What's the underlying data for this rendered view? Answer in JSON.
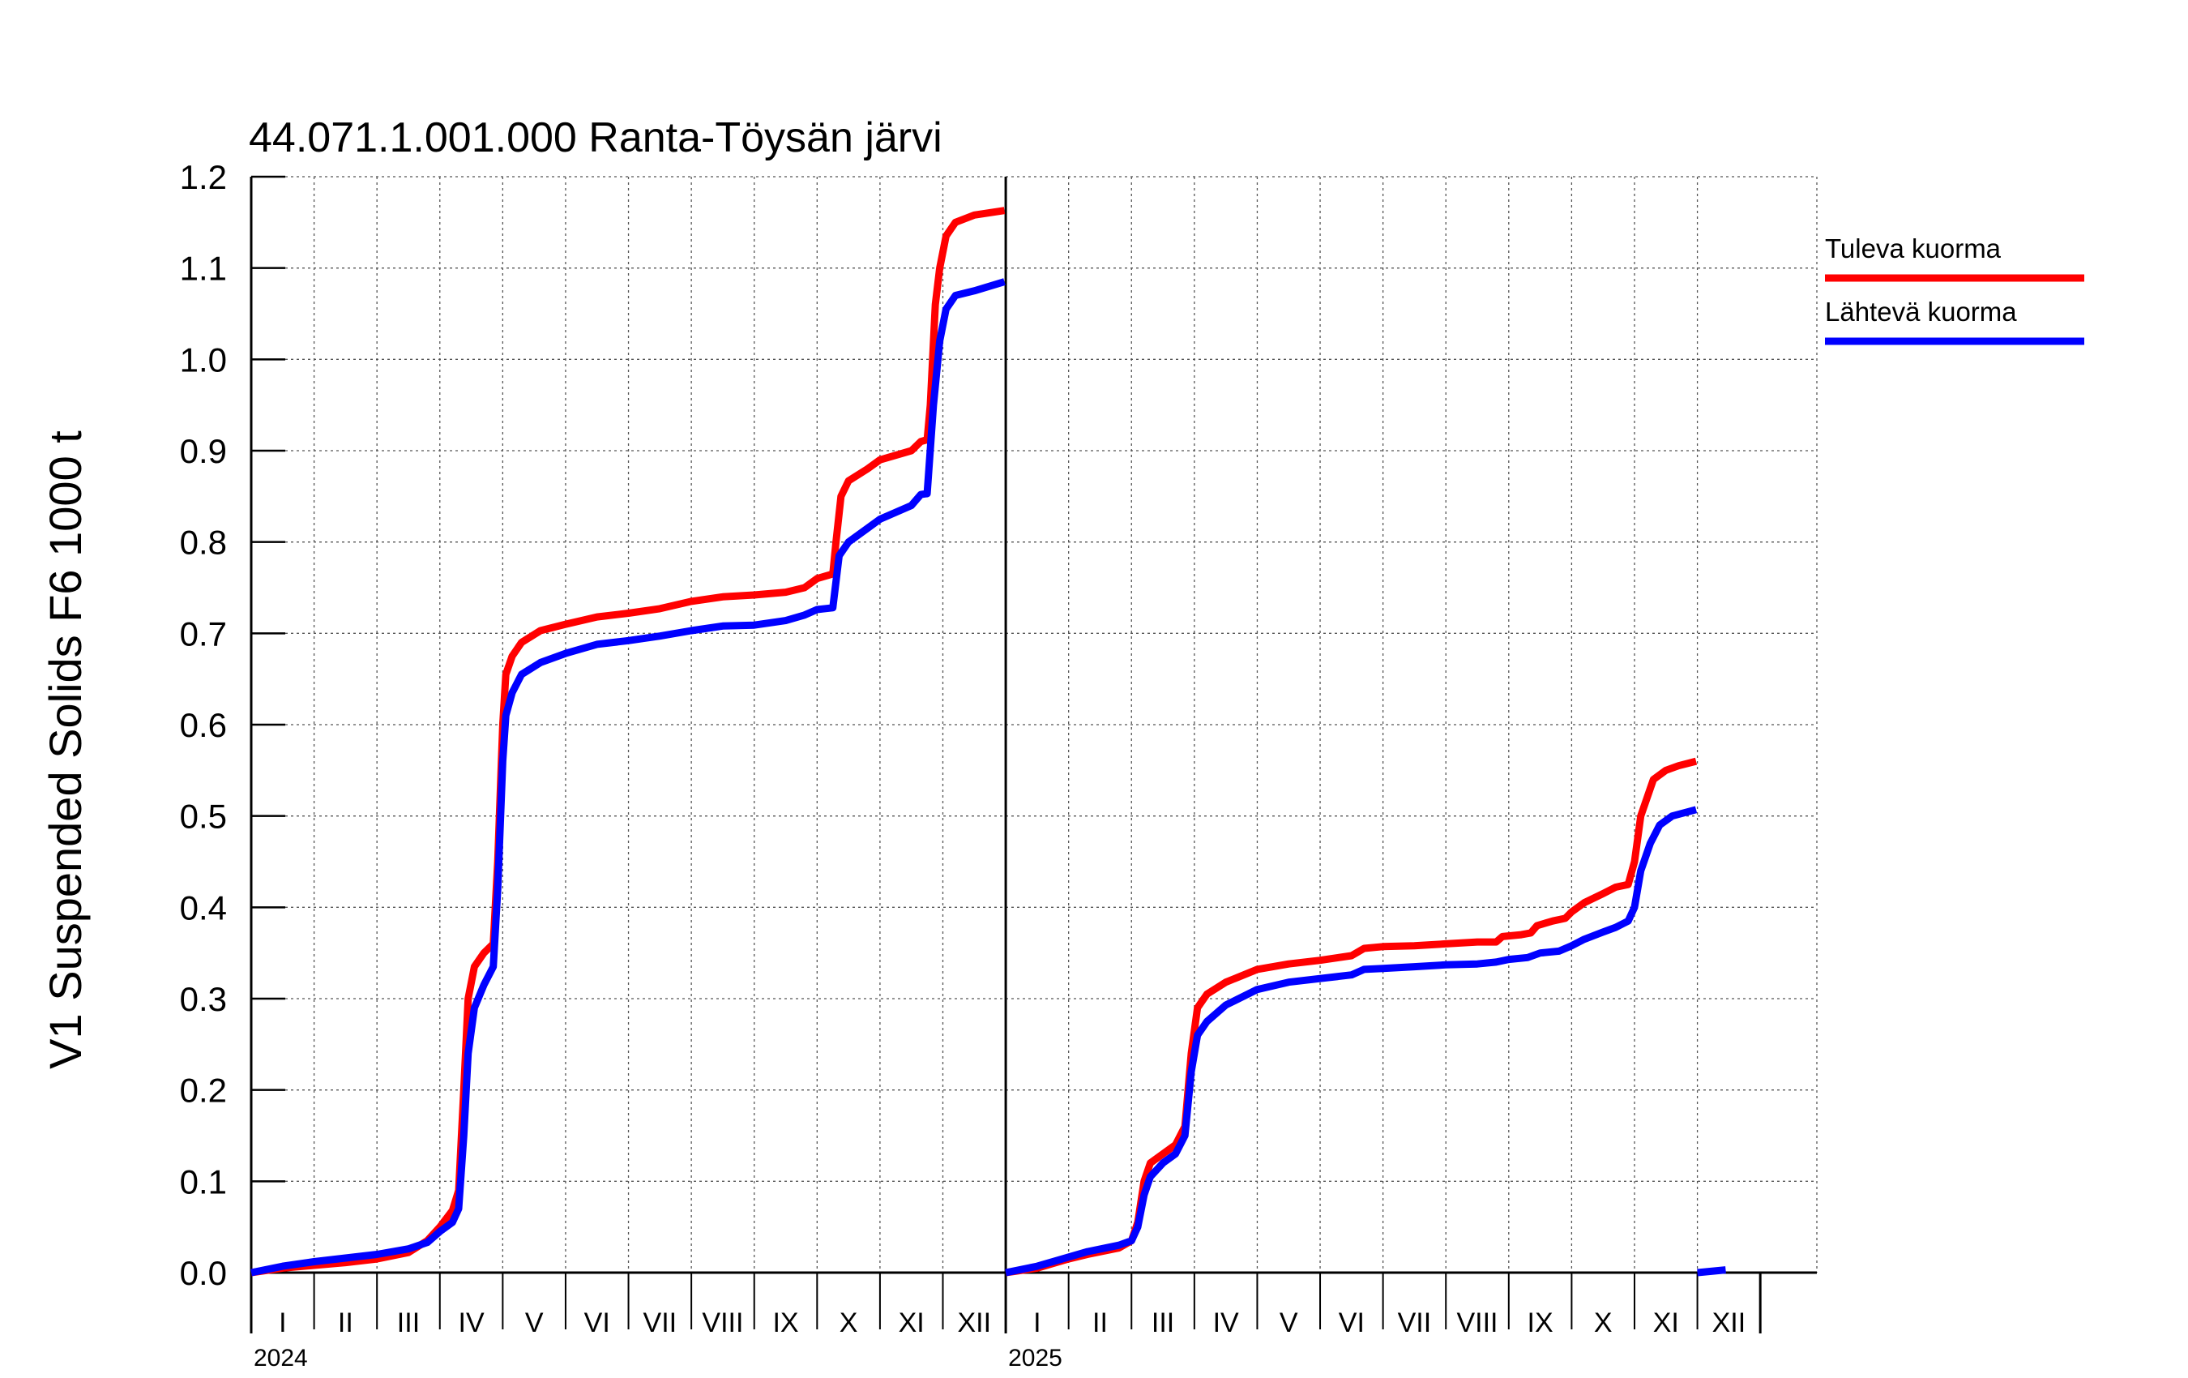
{
  "chart_data": {
    "type": "line",
    "title": "44.071.1.001.000 Ranta-Töysän järvi",
    "ylabel": "V1 Suspended Solids F6 1000 t",
    "ylim": [
      0.0,
      1.2
    ],
    "yticks": [
      "0.0",
      "0.1",
      "0.2",
      "0.3",
      "0.4",
      "0.5",
      "0.6",
      "0.7",
      "0.8",
      "0.9",
      "1.0",
      "1.1",
      "1.2"
    ],
    "xlim": [
      0,
      24.9
    ],
    "months": [
      "I",
      "II",
      "III",
      "IV",
      "V",
      "VI",
      "VII",
      "VIII",
      "IX",
      "X",
      "XI",
      "XII"
    ],
    "years": [
      {
        "label": "2024",
        "start": 0
      },
      {
        "label": "2025",
        "start": 12
      }
    ],
    "legend_position": "right",
    "series": [
      {
        "name": "Tuleva kuorma",
        "color": "#ff0000",
        "segments": [
          [
            [
              0,
              0.0
            ],
            [
              0.5,
              0.005
            ],
            [
              1.0,
              0.008
            ],
            [
              1.5,
              0.011
            ],
            [
              2.0,
              0.015
            ],
            [
              2.5,
              0.022
            ],
            [
              2.8,
              0.035
            ],
            [
              3.0,
              0.05
            ],
            [
              3.2,
              0.068
            ],
            [
              3.3,
              0.09
            ],
            [
              3.38,
              0.2
            ],
            [
              3.45,
              0.3
            ],
            [
              3.55,
              0.335
            ],
            [
              3.7,
              0.35
            ],
            [
              3.85,
              0.36
            ],
            [
              3.92,
              0.45
            ],
            [
              4.0,
              0.6
            ],
            [
              4.05,
              0.655
            ],
            [
              4.15,
              0.675
            ],
            [
              4.3,
              0.69
            ],
            [
              4.6,
              0.703
            ],
            [
              5.0,
              0.71
            ],
            [
              5.5,
              0.718
            ],
            [
              6.0,
              0.722
            ],
            [
              6.5,
              0.727
            ],
            [
              7.0,
              0.735
            ],
            [
              7.5,
              0.74
            ],
            [
              8.0,
              0.742
            ],
            [
              8.5,
              0.745
            ],
            [
              8.8,
              0.75
            ],
            [
              9.0,
              0.76
            ],
            [
              9.25,
              0.765
            ],
            [
              9.3,
              0.8
            ],
            [
              9.38,
              0.85
            ],
            [
              9.5,
              0.867
            ],
            [
              9.8,
              0.88
            ],
            [
              10.0,
              0.89
            ],
            [
              10.5,
              0.9
            ],
            [
              10.65,
              0.91
            ],
            [
              10.75,
              0.912
            ],
            [
              10.8,
              0.95
            ],
            [
              10.88,
              1.06
            ],
            [
              10.95,
              1.1
            ],
            [
              11.05,
              1.135
            ],
            [
              11.2,
              1.15
            ],
            [
              11.5,
              1.158
            ],
            [
              11.98,
              1.163
            ]
          ],
          [
            [
              12.0,
              0.0
            ],
            [
              12.5,
              0.005
            ],
            [
              13.0,
              0.015
            ],
            [
              13.3,
              0.02
            ],
            [
              13.8,
              0.027
            ],
            [
              14.0,
              0.035
            ],
            [
              14.1,
              0.055
            ],
            [
              14.2,
              0.1
            ],
            [
              14.3,
              0.12
            ],
            [
              14.5,
              0.13
            ],
            [
              14.7,
              0.14
            ],
            [
              14.85,
              0.16
            ],
            [
              14.95,
              0.24
            ],
            [
              15.05,
              0.29
            ],
            [
              15.2,
              0.305
            ],
            [
              15.5,
              0.318
            ],
            [
              16.0,
              0.332
            ],
            [
              16.5,
              0.338
            ],
            [
              17.0,
              0.342
            ],
            [
              17.5,
              0.347
            ],
            [
              17.7,
              0.355
            ],
            [
              18.0,
              0.357
            ],
            [
              18.5,
              0.358
            ],
            [
              19.0,
              0.36
            ],
            [
              19.5,
              0.362
            ],
            [
              19.8,
              0.362
            ],
            [
              19.9,
              0.368
            ],
            [
              20.2,
              0.37
            ],
            [
              20.35,
              0.372
            ],
            [
              20.45,
              0.38
            ],
            [
              20.7,
              0.385
            ],
            [
              20.9,
              0.388
            ],
            [
              21.0,
              0.395
            ],
            [
              21.2,
              0.405
            ],
            [
              21.5,
              0.415
            ],
            [
              21.7,
              0.422
            ],
            [
              21.9,
              0.425
            ],
            [
              22.0,
              0.45
            ],
            [
              22.1,
              0.5
            ],
            [
              22.2,
              0.52
            ],
            [
              22.3,
              0.54
            ],
            [
              22.5,
              0.55
            ],
            [
              22.7,
              0.555
            ],
            [
              22.98,
              0.56
            ]
          ]
        ]
      },
      {
        "name": "Lähtevä kuorma",
        "color": "#0000ff",
        "segments": [
          [
            [
              0,
              0.0
            ],
            [
              0.5,
              0.007
            ],
            [
              1.0,
              0.012
            ],
            [
              1.5,
              0.016
            ],
            [
              2.0,
              0.02
            ],
            [
              2.5,
              0.026
            ],
            [
              2.8,
              0.033
            ],
            [
              3.0,
              0.045
            ],
            [
              3.2,
              0.055
            ],
            [
              3.3,
              0.07
            ],
            [
              3.38,
              0.15
            ],
            [
              3.45,
              0.24
            ],
            [
              3.55,
              0.29
            ],
            [
              3.7,
              0.315
            ],
            [
              3.85,
              0.335
            ],
            [
              3.92,
              0.42
            ],
            [
              4.0,
              0.56
            ],
            [
              4.05,
              0.61
            ],
            [
              4.15,
              0.635
            ],
            [
              4.3,
              0.655
            ],
            [
              4.6,
              0.668
            ],
            [
              5.0,
              0.678
            ],
            [
              5.5,
              0.688
            ],
            [
              6.0,
              0.692
            ],
            [
              6.5,
              0.697
            ],
            [
              7.0,
              0.703
            ],
            [
              7.5,
              0.708
            ],
            [
              8.0,
              0.709
            ],
            [
              8.5,
              0.714
            ],
            [
              8.8,
              0.72
            ],
            [
              9.0,
              0.726
            ],
            [
              9.25,
              0.728
            ],
            [
              9.35,
              0.785
            ],
            [
              9.5,
              0.8
            ],
            [
              9.8,
              0.815
            ],
            [
              10.0,
              0.825
            ],
            [
              10.5,
              0.84
            ],
            [
              10.65,
              0.852
            ],
            [
              10.75,
              0.853
            ],
            [
              10.85,
              0.95
            ],
            [
              10.95,
              1.02
            ],
            [
              11.05,
              1.055
            ],
            [
              11.2,
              1.07
            ],
            [
              11.5,
              1.075
            ],
            [
              11.98,
              1.085
            ]
          ],
          [
            [
              12.0,
              0.0
            ],
            [
              12.5,
              0.007
            ],
            [
              13.0,
              0.017
            ],
            [
              13.3,
              0.023
            ],
            [
              13.8,
              0.03
            ],
            [
              14.0,
              0.035
            ],
            [
              14.1,
              0.05
            ],
            [
              14.2,
              0.085
            ],
            [
              14.3,
              0.105
            ],
            [
              14.5,
              0.12
            ],
            [
              14.7,
              0.13
            ],
            [
              14.85,
              0.15
            ],
            [
              14.95,
              0.22
            ],
            [
              15.05,
              0.26
            ],
            [
              15.2,
              0.275
            ],
            [
              15.5,
              0.293
            ],
            [
              16.0,
              0.31
            ],
            [
              16.5,
              0.318
            ],
            [
              17.0,
              0.322
            ],
            [
              17.5,
              0.326
            ],
            [
              17.7,
              0.332
            ],
            [
              18.0,
              0.333
            ],
            [
              18.5,
              0.335
            ],
            [
              19.0,
              0.337
            ],
            [
              19.5,
              0.338
            ],
            [
              19.8,
              0.34
            ],
            [
              20.0,
              0.343
            ],
            [
              20.3,
              0.345
            ],
            [
              20.5,
              0.35
            ],
            [
              20.8,
              0.352
            ],
            [
              21.0,
              0.358
            ],
            [
              21.2,
              0.365
            ],
            [
              21.5,
              0.373
            ],
            [
              21.7,
              0.378
            ],
            [
              21.9,
              0.385
            ],
            [
              22.0,
              0.4
            ],
            [
              22.1,
              0.44
            ],
            [
              22.25,
              0.47
            ],
            [
              22.4,
              0.49
            ],
            [
              22.6,
              0.5
            ],
            [
              22.98,
              0.507
            ]
          ],
          [
            [
              23.0,
              0.0
            ],
            [
              23.45,
              0.003
            ]
          ]
        ]
      }
    ]
  }
}
